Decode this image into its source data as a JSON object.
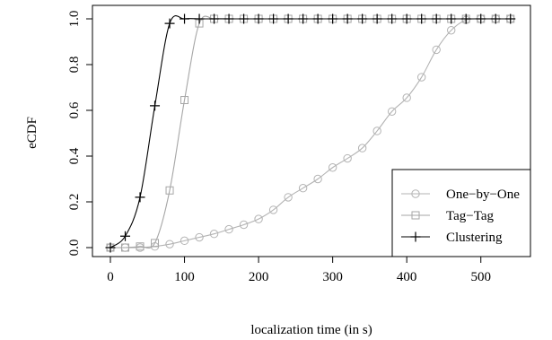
{
  "chart_data": {
    "type": "line",
    "xlabel": "localization time (in s)",
    "ylabel": "eCDF",
    "xlim": [
      0,
      550
    ],
    "ylim": [
      0,
      1
    ],
    "x_ticks": [
      0,
      100,
      200,
      300,
      400,
      500
    ],
    "y_ticks": [
      0.0,
      0.2,
      0.4,
      0.6,
      0.8,
      1.0
    ],
    "x_tick_labels": [
      "0",
      "100",
      "200",
      "300",
      "400",
      "500"
    ],
    "y_tick_labels": [
      "0.0",
      "0.2",
      "0.4",
      "0.6",
      "0.8",
      "1.0"
    ],
    "grid": false,
    "legend_position": "bottom-right",
    "series": [
      {
        "name": "One−by−One",
        "marker": "circle",
        "color": "#b3b3b3",
        "x": [
          0,
          20,
          40,
          60,
          80,
          100,
          120,
          140,
          160,
          180,
          200,
          220,
          240,
          260,
          280,
          300,
          320,
          340,
          360,
          380,
          400,
          420,
          440,
          460,
          480,
          500,
          520,
          540
        ],
        "y": [
          0,
          0,
          0,
          0.005,
          0.015,
          0.03,
          0.045,
          0.06,
          0.08,
          0.1,
          0.125,
          0.165,
          0.22,
          0.26,
          0.3,
          0.35,
          0.39,
          0.435,
          0.51,
          0.595,
          0.655,
          0.745,
          0.865,
          0.95,
          0.995,
          1,
          1,
          1
        ]
      },
      {
        "name": "Tag−Tag",
        "marker": "square",
        "color": "#a6a6a6",
        "x": [
          0,
          20,
          40,
          60,
          80,
          100,
          120,
          140,
          160,
          180,
          200,
          220,
          240,
          260,
          280,
          300,
          320,
          340,
          360,
          380,
          400,
          420,
          440,
          460,
          480,
          500,
          520,
          540
        ],
        "y": [
          0,
          0,
          0.005,
          0.02,
          0.25,
          0.645,
          0.98,
          1,
          1,
          1,
          1,
          1,
          1,
          1,
          1,
          1,
          1,
          1,
          1,
          1,
          1,
          1,
          1,
          1,
          1,
          1,
          1,
          1
        ]
      },
      {
        "name": "Clustering",
        "marker": "plus",
        "color": "#000000",
        "x": [
          0,
          20,
          40,
          60,
          80,
          100,
          120,
          140,
          160,
          180,
          200,
          220,
          240,
          260,
          280,
          300,
          320,
          340,
          360,
          380,
          400,
          420,
          440,
          460,
          480,
          500,
          520,
          540
        ],
        "y": [
          0,
          0.05,
          0.22,
          0.62,
          0.98,
          1,
          1,
          1,
          1,
          1,
          1,
          1,
          1,
          1,
          1,
          1,
          1,
          1,
          1,
          1,
          1,
          1,
          1,
          1,
          1,
          1,
          1,
          1
        ]
      }
    ]
  }
}
